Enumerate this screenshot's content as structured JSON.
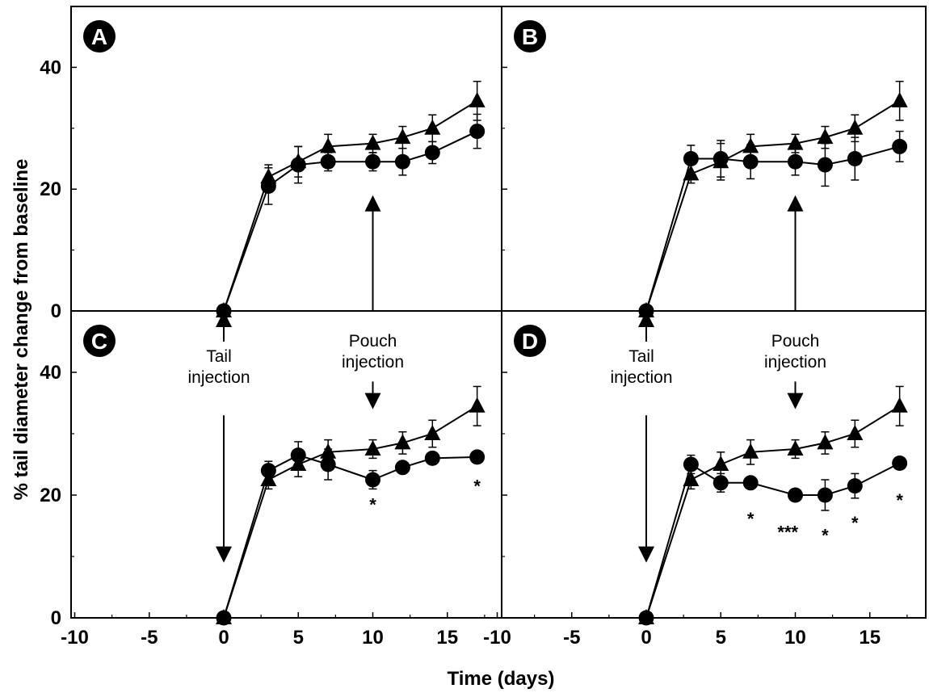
{
  "chart_data": [
    {
      "panel": "A",
      "type": "line",
      "series": [
        {
          "marker": "triangle",
          "x": [
            0,
            3,
            5,
            7,
            10,
            12,
            14,
            17
          ],
          "y": [
            0,
            22,
            24.5,
            27,
            27.5,
            28.5,
            30,
            34.5
          ],
          "err": [
            0,
            2,
            2.5,
            2,
            1.5,
            1.8,
            2.2,
            3.2
          ]
        },
        {
          "marker": "circle",
          "x": [
            0,
            3,
            5,
            7,
            10,
            12,
            14,
            17
          ],
          "y": [
            0,
            20.5,
            24,
            24.5,
            24.5,
            24.5,
            26,
            29.5
          ],
          "err": [
            0,
            3,
            3,
            1.5,
            1.5,
            2.2,
            1.8,
            2.8
          ]
        }
      ],
      "xlim": [
        -10,
        19
      ],
      "ylim": [
        0,
        50
      ],
      "xticks": [
        -10,
        -5,
        0,
        5,
        10,
        15
      ],
      "yticks": [
        0,
        20,
        40
      ],
      "annotations": [
        {
          "type": "arrow-up",
          "x": 10,
          "y_from": 0,
          "y_to": 19
        }
      ],
      "stars": []
    },
    {
      "panel": "B",
      "type": "line",
      "series": [
        {
          "marker": "triangle",
          "x": [
            0,
            3,
            5,
            7,
            10,
            12,
            14,
            17
          ],
          "y": [
            0,
            22.5,
            24.5,
            27,
            27.5,
            28.5,
            30,
            34.5
          ],
          "err": [
            0,
            1.5,
            3,
            2,
            1.5,
            1.8,
            2.2,
            3.2
          ]
        },
        {
          "marker": "circle",
          "x": [
            0,
            3,
            5,
            7,
            10,
            12,
            14,
            17
          ],
          "y": [
            0,
            25,
            25,
            24.5,
            24.5,
            24,
            25,
            27
          ],
          "err": [
            0,
            2.2,
            3,
            2.8,
            2.2,
            3.5,
            3.5,
            2.5
          ]
        }
      ],
      "xlim": [
        -10,
        19
      ],
      "ylim": [
        0,
        50
      ],
      "xticks": [
        -10,
        -5,
        0,
        5,
        10,
        15
      ],
      "yticks": [
        0,
        20,
        40
      ],
      "annotations": [
        {
          "type": "arrow-up",
          "x": 10,
          "y_from": 0,
          "y_to": 19
        }
      ],
      "stars": []
    },
    {
      "panel": "C",
      "type": "line",
      "series": [
        {
          "marker": "triangle",
          "x": [
            0,
            3,
            5,
            7,
            10,
            12,
            14,
            17
          ],
          "y": [
            0,
            22.5,
            25,
            27,
            27.5,
            28.5,
            30,
            34.5
          ],
          "err": [
            0,
            1.5,
            2,
            2,
            1.5,
            1.8,
            2.2,
            3.2
          ]
        },
        {
          "marker": "circle",
          "x": [
            0,
            3,
            5,
            7,
            10,
            12,
            14,
            17
          ],
          "y": [
            0,
            24,
            26.5,
            25,
            22.5,
            24.5,
            26,
            26.2
          ],
          "err": [
            0,
            1.5,
            2.2,
            2.5,
            1.5,
            0.8,
            0.8,
            0.6
          ]
        }
      ],
      "xlim": [
        -10,
        19
      ],
      "ylim": [
        0,
        50
      ],
      "xticks": [
        -10,
        -5,
        0,
        5,
        10,
        15
      ],
      "yticks": [
        0,
        20,
        40
      ],
      "annotations": [
        {
          "type": "arrow-up",
          "x": 0,
          "y_from": 45,
          "y_to": 50
        },
        {
          "type": "arrow-down",
          "x": 0,
          "y_from": 33,
          "y_to": 9
        },
        {
          "type": "arrow-down",
          "x": 10,
          "y_from": 38.5,
          "y_to": 34
        }
      ],
      "stars": [
        {
          "x": 10,
          "y": 18.5,
          "text": "*"
        },
        {
          "x": 17,
          "y": 21.5,
          "text": "*"
        }
      ],
      "labels": {
        "tail": [
          "Tail",
          "injection"
        ],
        "pouch": [
          "Pouch",
          "injection"
        ]
      }
    },
    {
      "panel": "D",
      "type": "line",
      "series": [
        {
          "marker": "triangle",
          "x": [
            0,
            3,
            5,
            7,
            10,
            12,
            14,
            17
          ],
          "y": [
            0,
            22.5,
            25,
            27,
            27.5,
            28.5,
            30,
            34.5
          ],
          "err": [
            0,
            1.5,
            2,
            2,
            1.5,
            1.8,
            2.2,
            3.2
          ]
        },
        {
          "marker": "circle",
          "x": [
            0,
            3,
            5,
            7,
            10,
            12,
            14,
            17
          ],
          "y": [
            0,
            25,
            22,
            22,
            20,
            20,
            21.5,
            25.2
          ],
          "err": [
            0,
            1.5,
            1.5,
            0.6,
            0.6,
            2.5,
            2,
            0.6
          ]
        }
      ],
      "xlim": [
        -10,
        19
      ],
      "ylim": [
        0,
        50
      ],
      "xticks": [
        -10,
        -5,
        0,
        5,
        10,
        15
      ],
      "yticks": [
        0,
        20,
        40
      ],
      "annotations": [
        {
          "type": "arrow-up",
          "x": 0,
          "y_from": 45,
          "y_to": 50
        },
        {
          "type": "arrow-down",
          "x": 0,
          "y_from": 33,
          "y_to": 9
        },
        {
          "type": "arrow-down",
          "x": 10,
          "y_from": 38.5,
          "y_to": 34
        }
      ],
      "stars": [
        {
          "x": 7,
          "y": 16.2,
          "text": "*"
        },
        {
          "x": 9.5,
          "y": 14,
          "text": "***"
        },
        {
          "x": 12,
          "y": 13.5,
          "text": "*"
        },
        {
          "x": 14,
          "y": 15.5,
          "text": "*"
        },
        {
          "x": 17,
          "y": 19.2,
          "text": "*"
        }
      ],
      "labels": {
        "tail": [
          "Tail",
          "injection"
        ],
        "pouch": [
          "Pouch",
          "injection"
        ]
      }
    }
  ],
  "axes": {
    "ylabel": "% tail diameter change from baseline",
    "xlabel": "Time (days)"
  }
}
